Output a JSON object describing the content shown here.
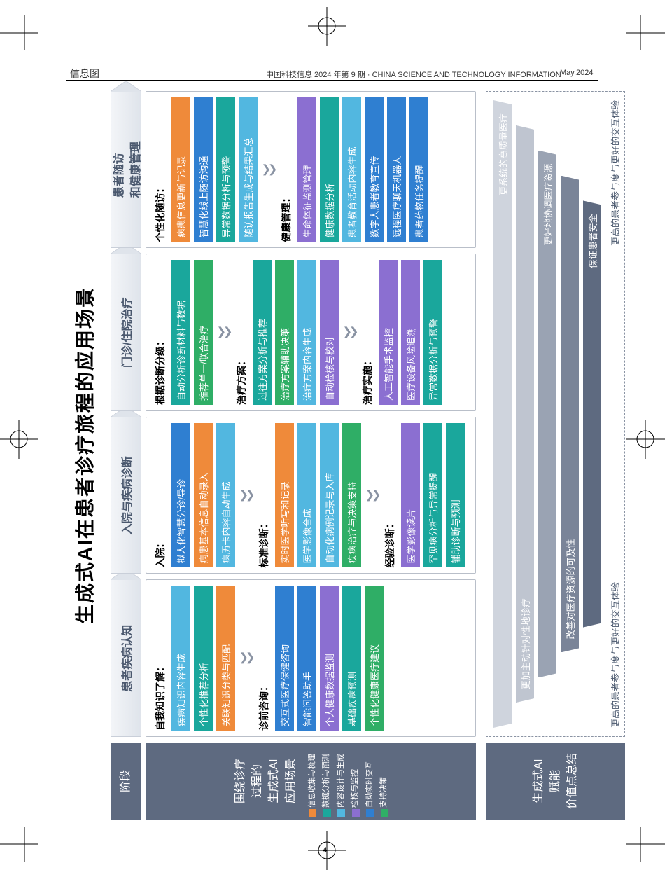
{
  "page": {
    "corner_label": "信息图",
    "journal_line": "中国科技信息 2024 年第 9 期 · CHINA SCIENCE AND TECHNOLOGY INFORMATION",
    "issue_date": "May.2024",
    "page_number": "–4–"
  },
  "title": "生成式AI在患者诊疗旅程的应用场景",
  "colors": {
    "slate": "#5e6a80",
    "orange": "#ef8a3a",
    "teal": "#1aa79c",
    "sky": "#52b7e0",
    "purple": "#8b6fd1",
    "blue": "#2f7fd1",
    "green": "#2fae66",
    "arrow": "#8a93a3",
    "cone1": "#cfd4dd",
    "cone2": "#bfc5d0",
    "cone3": "#9aa3b3",
    "cone4": "#7a8498",
    "cone5": "#5e6a80",
    "cone_border": "#8a93a3"
  },
  "side": {
    "row1": "阶段",
    "row2": [
      "围绕诊疗",
      "过程的",
      "生成式AI",
      "应用场景"
    ],
    "row3": [
      "生成式AI",
      "赋能",
      "价值点总结"
    ]
  },
  "key": [
    {
      "label": "信息收集与梳理",
      "color": "orange"
    },
    {
      "label": "数据分析与预测",
      "color": "teal"
    },
    {
      "label": "内容设计与生成",
      "color": "sky"
    },
    {
      "label": "检核与监控",
      "color": "purple"
    },
    {
      "label": "自动实时交互",
      "color": "blue"
    },
    {
      "label": "支持决策",
      "color": "green"
    }
  ],
  "phases": [
    {
      "head": "患者疾病认知",
      "sections": [
        {
          "title": "自我知识了解：",
          "items": [
            {
              "t": "疾病知识内容生成",
              "c": "sky"
            },
            {
              "t": "个性化推荐分析",
              "c": "teal"
            },
            {
              "t": "关联知识分类与匹配",
              "c": "orange"
            }
          ]
        },
        {
          "title": "诊前咨询：",
          "items": [
            {
              "t": "交互式医疗保健咨询",
              "c": "blue"
            },
            {
              "t": "智能问答助手",
              "c": "blue"
            },
            {
              "t": "个人健康数据监测",
              "c": "purple"
            },
            {
              "t": "基础疾病预测",
              "c": "teal"
            },
            {
              "t": "个性化健康医疗建议",
              "c": "green"
            }
          ]
        }
      ]
    },
    {
      "head": "入院与疾病诊断",
      "sections": [
        {
          "title": "入院：",
          "items": [
            {
              "t": "拟人化智慧分诊/导诊",
              "c": "blue"
            },
            {
              "t": "病患基本信息自动录入",
              "c": "orange"
            },
            {
              "t": "病历卡内容自动生成",
              "c": "sky"
            }
          ]
        },
        {
          "title": "标准诊断：",
          "items": [
            {
              "t": "实时医学听写和记录",
              "c": "orange"
            },
            {
              "t": "医学影像合成",
              "c": "sky"
            },
            {
              "t": "自动化病例记录与入库",
              "c": "sky"
            },
            {
              "t": "疾病治疗与决策支持",
              "c": "green"
            }
          ]
        },
        {
          "title": "经验诊断：",
          "items": [
            {
              "t": "医学影像读片",
              "c": "purple"
            },
            {
              "t": "罕见病分析与异常提醒",
              "c": "teal"
            },
            {
              "t": "辅助诊断与预测",
              "c": "teal"
            }
          ]
        }
      ]
    },
    {
      "head": "门诊/住院治疗",
      "sections": [
        {
          "title": "根据诊断分级：",
          "items": [
            {
              "t": "自动分析诊断材料与数据",
              "c": "teal"
            },
            {
              "t": "推荐单一/联合治疗",
              "c": "green"
            }
          ]
        },
        {
          "title": "治疗方案：",
          "items": [
            {
              "t": "过往方案分析与推荐",
              "c": "teal"
            },
            {
              "t": "治疗方案辅助决策",
              "c": "green"
            },
            {
              "t": "治疗方案内容生成",
              "c": "sky"
            },
            {
              "t": "自动检核与校对",
              "c": "purple"
            }
          ]
        },
        {
          "title": "治疗实施：",
          "items": [
            {
              "t": "人工智能手术监控",
              "c": "purple"
            },
            {
              "t": "医疗设备风险追溯",
              "c": "purple"
            },
            {
              "t": "异常数据分析与预警",
              "c": "teal"
            }
          ]
        }
      ]
    },
    {
      "head": "患者随访\n和健康管理",
      "sections": [
        {
          "title": "个性化随访：",
          "items": [
            {
              "t": "病患信息更新与记录",
              "c": "orange"
            },
            {
              "t": "智慧化线上随访沟通",
              "c": "blue"
            },
            {
              "t": "异常数据分析与预警",
              "c": "teal"
            },
            {
              "t": "随访报告生成与结果汇总",
              "c": "sky"
            }
          ]
        },
        {
          "title": "健康管理：",
          "items": [
            {
              "t": "生命体征监测管理",
              "c": "purple"
            },
            {
              "t": "健康数据分析",
              "c": "teal"
            },
            {
              "t": "患者教育活动内容生成",
              "c": "sky"
            },
            {
              "t": "数字人患者教育宣传",
              "c": "blue"
            },
            {
              "t": "远程医疗聊天机器人",
              "c": "blue"
            },
            {
              "t": "患者药物任务提醒",
              "c": "blue"
            }
          ]
        }
      ]
    }
  ],
  "value_cone": {
    "caption_left": "更高的患者参与度与更好的交互体验",
    "caption_right": "更高的患者参与度与更好的交互体验",
    "rows": [
      {
        "left": "",
        "right": "更系统的高质量医疗",
        "color": "cone1",
        "indent": 0.0,
        "label_pos": "right"
      },
      {
        "left": "更加主动针对性地诊疗",
        "right": "",
        "color": "cone2",
        "indent": 0.04,
        "label_pos": "left"
      },
      {
        "left": "",
        "right": "更好地协调医疗资源",
        "color": "cone3",
        "indent": 0.08,
        "label_pos": "right"
      },
      {
        "left": "改善对医疗资源的可及性",
        "right": "",
        "color": "cone4",
        "indent": 0.12,
        "label_pos": "left"
      },
      {
        "left": "",
        "right": "保证患者安全",
        "color": "cone5",
        "indent": 0.16,
        "label_pos": "right"
      }
    ]
  }
}
